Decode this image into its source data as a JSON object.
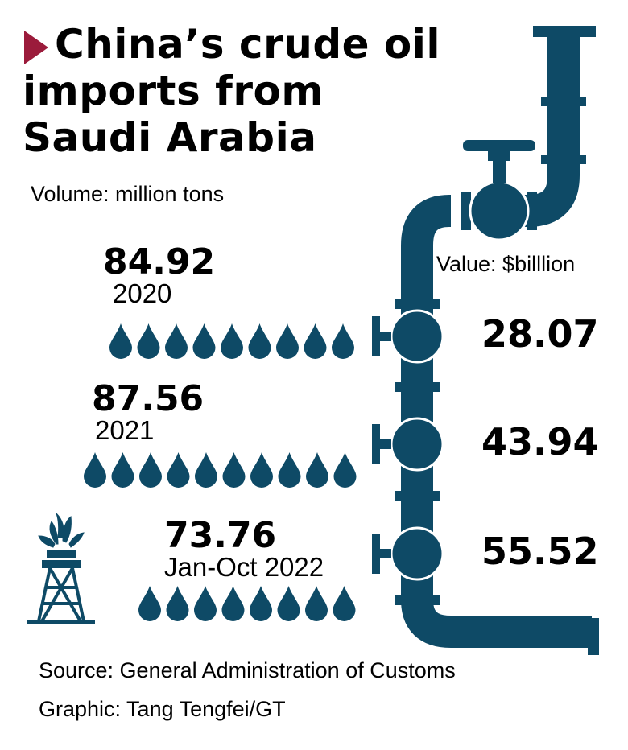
{
  "title": "China’s crude oil imports from Saudi Arabia",
  "volume_label": "Volume: million tons",
  "value_label": "Value: $billlion",
  "source": "Source: General Administration of Customs",
  "credit": "Graphic: Tang Tengfei/GT",
  "colors": {
    "accent": "#9b1b3b",
    "pipe": "#0e4a66",
    "text": "#000000"
  },
  "icons": [
    "pipeline-icon",
    "valve-icon",
    "oil-drop-icon",
    "oil-rig-icon"
  ],
  "chart_data": {
    "type": "table",
    "categories": [
      "2020",
      "2021",
      "Jan-Oct 2022"
    ],
    "series": [
      {
        "name": "Volume: million tons",
        "values": [
          84.92,
          87.56,
          73.76
        ]
      },
      {
        "name": "Value: $billlion",
        "values": [
          28.07,
          43.94,
          55.52
        ]
      }
    ],
    "rows": [
      {
        "year": "2020",
        "volume": "84.92",
        "value": "28.07"
      },
      {
        "year": "2021",
        "volume": "87.56",
        "value": "43.94"
      },
      {
        "year": "Jan-Oct 2022",
        "volume": "73.76",
        "value": "55.52"
      }
    ]
  }
}
